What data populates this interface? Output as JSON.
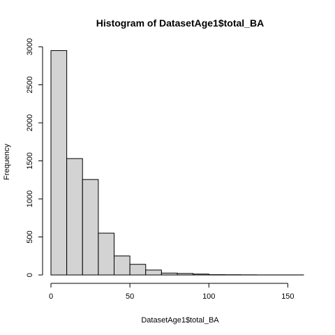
{
  "chart_data": {
    "type": "bar",
    "title": "Histogram of DatasetAge1$total_BA",
    "xlabel": "DatasetAge1$total_BA",
    "ylabel": "Frequency",
    "bins": [
      {
        "start": 0,
        "end": 10,
        "value": 2950
      },
      {
        "start": 10,
        "end": 20,
        "value": 1530
      },
      {
        "start": 20,
        "end": 30,
        "value": 1255
      },
      {
        "start": 30,
        "end": 40,
        "value": 550
      },
      {
        "start": 40,
        "end": 50,
        "value": 250
      },
      {
        "start": 50,
        "end": 60,
        "value": 140
      },
      {
        "start": 60,
        "end": 70,
        "value": 65
      },
      {
        "start": 70,
        "end": 80,
        "value": 25
      },
      {
        "start": 80,
        "end": 90,
        "value": 20
      },
      {
        "start": 90,
        "end": 100,
        "value": 12
      },
      {
        "start": 100,
        "end": 110,
        "value": 4
      },
      {
        "start": 110,
        "end": 120,
        "value": 3
      },
      {
        "start": 120,
        "end": 130,
        "value": 2
      },
      {
        "start": 130,
        "end": 140,
        "value": 1
      },
      {
        "start": 140,
        "end": 150,
        "value": 1
      },
      {
        "start": 150,
        "end": 160,
        "value": 1
      }
    ],
    "xlim": [
      0,
      160
    ],
    "ylim": [
      0,
      3000
    ],
    "x_ticks": [
      0,
      50,
      100,
      150
    ],
    "y_ticks": [
      0,
      500,
      1000,
      1500,
      2000,
      2500,
      3000
    ],
    "grid": false,
    "bar_color": "#d3d3d3",
    "edge_color": "#000000"
  }
}
